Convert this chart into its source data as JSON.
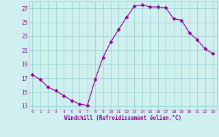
{
  "x": [
    0,
    1,
    2,
    3,
    4,
    5,
    6,
    7,
    8,
    9,
    10,
    11,
    12,
    13,
    14,
    15,
    16,
    17,
    18,
    19,
    20,
    21,
    22,
    23
  ],
  "y": [
    17.5,
    16.8,
    15.7,
    15.2,
    14.5,
    13.8,
    13.3,
    13.1,
    16.8,
    20.0,
    22.2,
    24.0,
    25.7,
    27.3,
    27.5,
    27.2,
    27.2,
    27.1,
    25.5,
    25.3,
    23.5,
    22.5,
    21.2,
    20.5
  ],
  "line_color": "#990099",
  "marker": "D",
  "marker_size": 2.5,
  "bg_color": "#d0f0f0",
  "grid_color": "#a0d8d8",
  "xlabel": "Windchill (Refroidissement éolien,°C)",
  "xlabel_color": "#990099",
  "ylabel_ticks": [
    13,
    15,
    17,
    19,
    21,
    23,
    25,
    27
  ],
  "xtick_labels": [
    "0",
    "1",
    "2",
    "3",
    "4",
    "5",
    "6",
    "7",
    "8",
    "9",
    "10",
    "11",
    "12",
    "13",
    "14",
    "15",
    "16",
    "17",
    "18",
    "19",
    "20",
    "21",
    "22",
    "23"
  ],
  "xlim": [
    -0.5,
    23.5
  ],
  "ylim": [
    12.5,
    28.0
  ]
}
